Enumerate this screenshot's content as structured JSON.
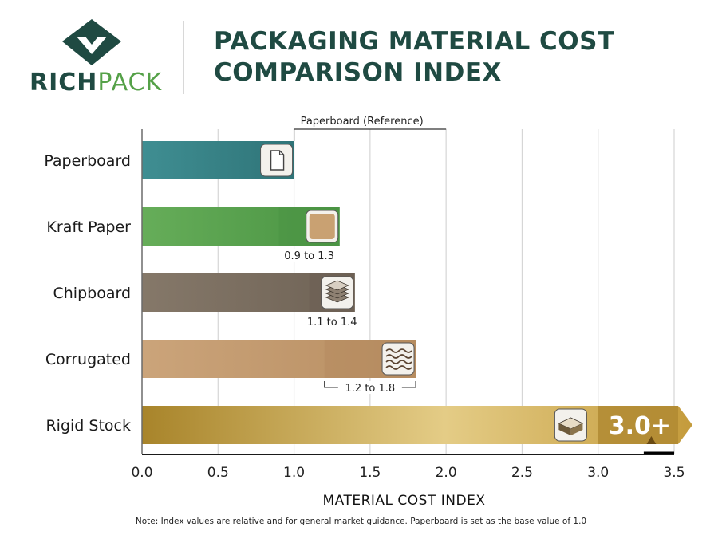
{
  "header": {
    "logo_rich": "RICH",
    "logo_pack": "PACK",
    "title_line1": "PACKAGING MATERIAL COST",
    "title_line2": "COMPARISON INDEX"
  },
  "note": "Note: Index values are relative and for general market guidance. Paperboard is set as the base value of 1.0",
  "colors": {
    "brand_dark": "#1f4a42",
    "brand_green": "#55a148",
    "paperboard": "#3d8b8c",
    "kraft": "#5aa34f",
    "chipboard": "#7b6e61",
    "corrugated": "#c49c70",
    "rigid": "#c8a544"
  },
  "chart_data": {
    "type": "bar",
    "orientation": "horizontal",
    "categories": [
      "Paperboard",
      "Kraft Paper",
      "Chipboard",
      "Corrugated",
      "Rigid Stock"
    ],
    "values": [
      1.0,
      1.3,
      1.4,
      1.8,
      3.5
    ],
    "ranges": [
      null,
      [
        0.9,
        1.3
      ],
      [
        1.1,
        1.4
      ],
      [
        1.2,
        1.8
      ],
      null
    ],
    "range_labels": [
      "",
      "0.9 to 1.3",
      "1.1 to 1.4",
      "1.2 to 1.8",
      ""
    ],
    "value_badge": "3.0+",
    "reference_label": "Paperboard (Reference)",
    "icons": [
      "paper-sheet-icon",
      "kraft-swatch-icon",
      "chipboard-stack-icon",
      "corrugated-layers-icon",
      "rigid-board-icon"
    ],
    "xlabel": "MATERIAL COST INDEX",
    "xlim": [
      0,
      3.5
    ],
    "xticks": [
      0.0,
      0.5,
      1.0,
      1.5,
      2.0,
      2.5,
      3.0,
      3.5
    ],
    "xtick_labels": [
      "0.0",
      "0.5",
      "1.0",
      "1.5",
      "2.0",
      "2.5",
      "3.0",
      "3.5"
    ],
    "grid": true
  }
}
